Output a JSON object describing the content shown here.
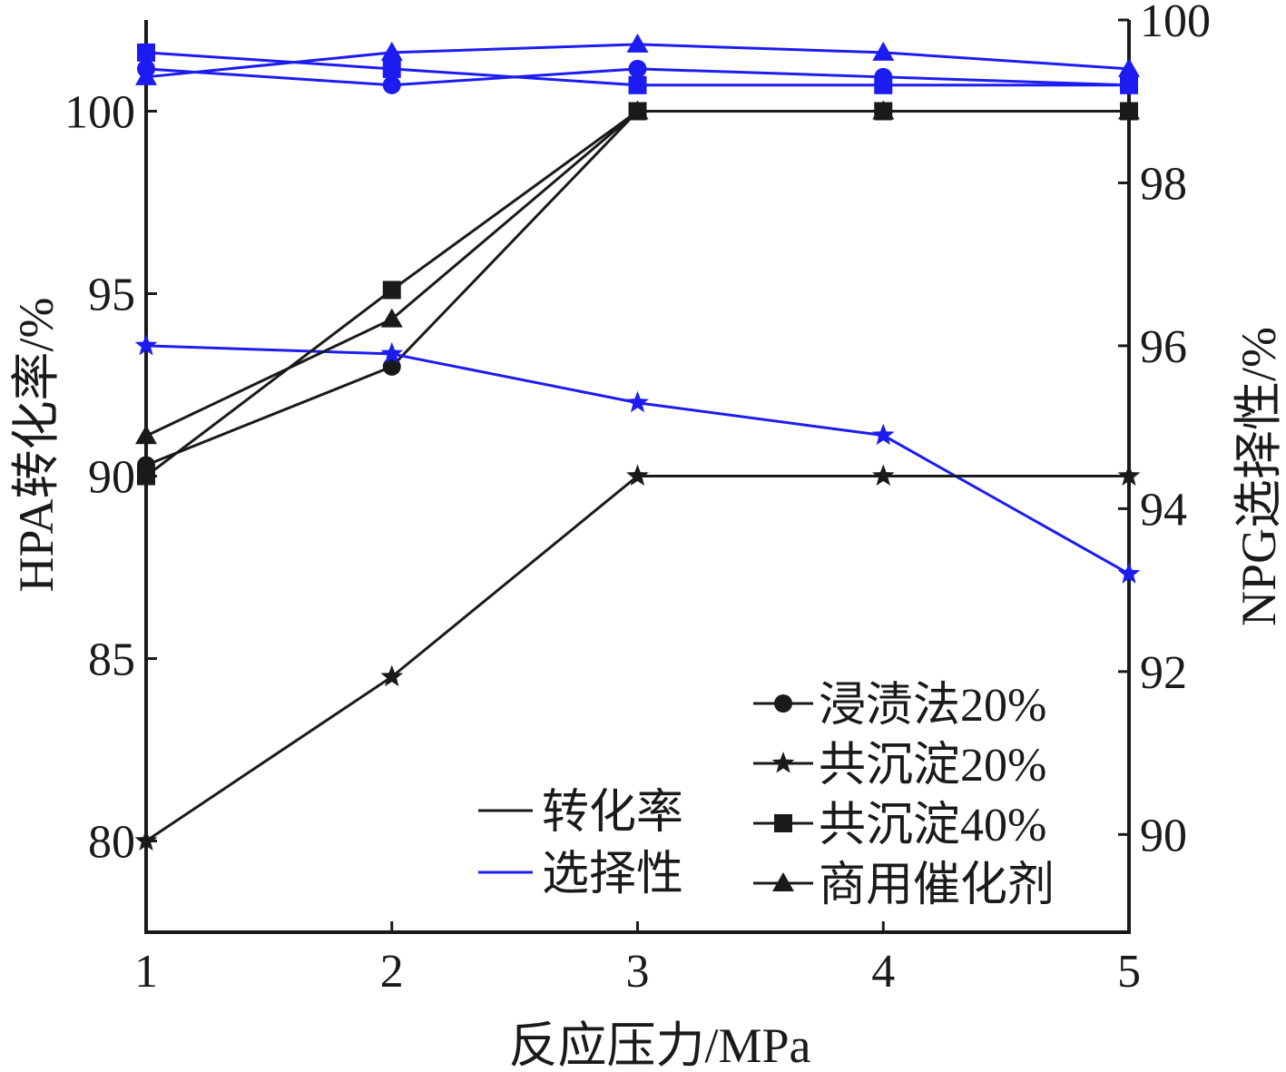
{
  "chart_data": {
    "type": "line",
    "title": "",
    "xlabel": "反应压力/MPa",
    "ylabel_left": "HPA转化率/%",
    "ylabel_right": "NPG选择性/%",
    "x": [
      1,
      2,
      3,
      4,
      5
    ],
    "xlim": [
      1,
      5
    ],
    "ylim_left": [
      77.5,
      102.5
    ],
    "ylim_right": [
      88.8,
      100
    ],
    "xticks": [
      "1",
      "2",
      "3",
      "4",
      "5"
    ],
    "yticks_left": [
      "80",
      "85",
      "90",
      "95",
      "100"
    ],
    "yticks_right": [
      "90",
      "92",
      "94",
      "96",
      "98",
      "100"
    ],
    "grid": false,
    "legend_placement": "bottom-right",
    "colors": {
      "conversion": "#1a1a1a",
      "selectivity": "#1c1cf0"
    },
    "catalysts": [
      {
        "name": "浸渍法20%",
        "marker": "circle",
        "conversion": [
          90.3,
          93.0,
          100.0,
          100.0,
          100.0
        ],
        "selectivity": [
          99.4,
          99.2,
          99.4,
          99.3,
          99.2
        ]
      },
      {
        "name": "共沉淀20%",
        "marker": "star",
        "conversion": [
          80.0,
          84.5,
          90.0,
          90.0,
          90.0
        ],
        "selectivity": [
          96.0,
          95.9,
          95.3,
          94.9,
          93.2
        ]
      },
      {
        "name": "共沉淀40%",
        "marker": "square",
        "conversion": [
          90.0,
          95.1,
          100.0,
          100.0,
          100.0
        ],
        "selectivity": [
          99.6,
          99.4,
          99.2,
          99.2,
          99.2
        ]
      },
      {
        "name": "商用催化剂",
        "marker": "triangle",
        "conversion": [
          91.1,
          94.3,
          100.0,
          100.0,
          100.0
        ],
        "selectivity": [
          99.3,
          99.6,
          99.7,
          99.6,
          99.4
        ]
      }
    ],
    "legend_type": [
      {
        "label": "转化率",
        "series": "conversion"
      },
      {
        "label": "选择性",
        "series": "selectivity"
      }
    ]
  }
}
